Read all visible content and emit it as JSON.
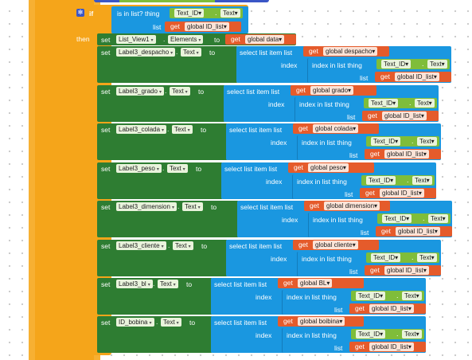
{
  "if_block": {
    "if_label": "if",
    "then_label": "then",
    "is_in_list_label": "is in list? thing",
    "list_label": "list",
    "thing": {
      "component": "Text_ID",
      "property": "Text"
    },
    "list_get": {
      "get": "get",
      "var": "global ID_list"
    }
  },
  "elements_row": {
    "set": "set",
    "component": "List_View1",
    "property": "Elements",
    "to": "to",
    "get": "get",
    "var": "global data"
  },
  "rows": [
    {
      "component": "Label3_despacho",
      "property": "Text",
      "var": "global despacho"
    },
    {
      "component": "Label3_grado",
      "property": "Text",
      "var": "global grado"
    },
    {
      "component": "Label3_colada",
      "property": "Text",
      "var": "global colada"
    },
    {
      "component": "Label3_peso",
      "property": "Text",
      "var": "global peso"
    },
    {
      "component": "Label3_dimension",
      "property": "Text",
      "var": "global dimension"
    },
    {
      "component": "Label3_cliente",
      "property": "Text",
      "var": "global cliente"
    },
    {
      "component": "Label3_bl",
      "property": "Text",
      "var": "global BL"
    },
    {
      "component": "ID_bobina",
      "property": "Text",
      "var": "global boibina"
    }
  ],
  "labels": {
    "set": "set",
    "to": "to",
    "select_list_item_list": "select list item  list",
    "index": "index",
    "index_in_list_thing": "index in list  thing",
    "list": "list",
    "get": "get",
    "text_id": "Text_ID",
    "text_prop": "Text",
    "id_list": "global ID_list"
  },
  "colors": {
    "control_orange": "#f5a51a",
    "setter_green": "#2e7d32",
    "list_blue": "#1a97e0",
    "variable_red": "#e55b2b",
    "component_green": "#7fbd3a"
  },
  "icons": [
    "gear-icon",
    "dropdown-arrow-icon"
  ]
}
